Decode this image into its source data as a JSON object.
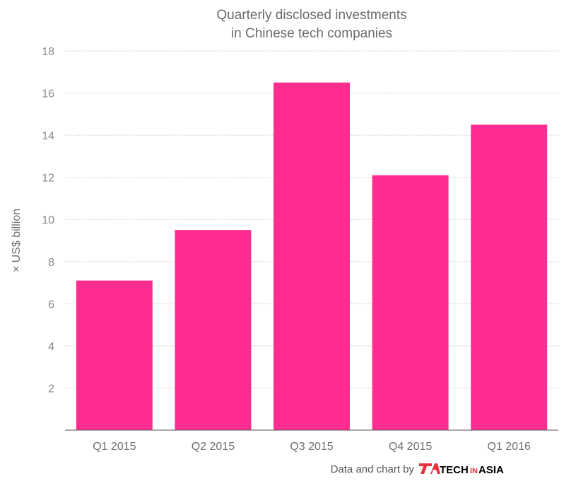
{
  "chart_data": {
    "type": "bar",
    "title": [
      "Quarterly disclosed investments",
      "in Chinese tech companies"
    ],
    "categories": [
      "Q1 2015",
      "Q2 2015",
      "Q3 2015",
      "Q4 2015",
      "Q1 2016"
    ],
    "values": [
      7.1,
      9.5,
      16.5,
      12.1,
      14.5
    ],
    "xlabel": "",
    "ylabel": "× US$ billion",
    "ylim": [
      0,
      18
    ],
    "yticks": [
      2,
      4,
      6,
      8,
      10,
      12,
      14,
      16,
      18
    ],
    "grid": true,
    "bar_color": "#ff2d8f"
  },
  "credit": {
    "text": "Data and chart by",
    "logo_tech": "TECH",
    "logo_in": "IN",
    "logo_asia": "ASIA",
    "logo_color": "#e8313f"
  }
}
